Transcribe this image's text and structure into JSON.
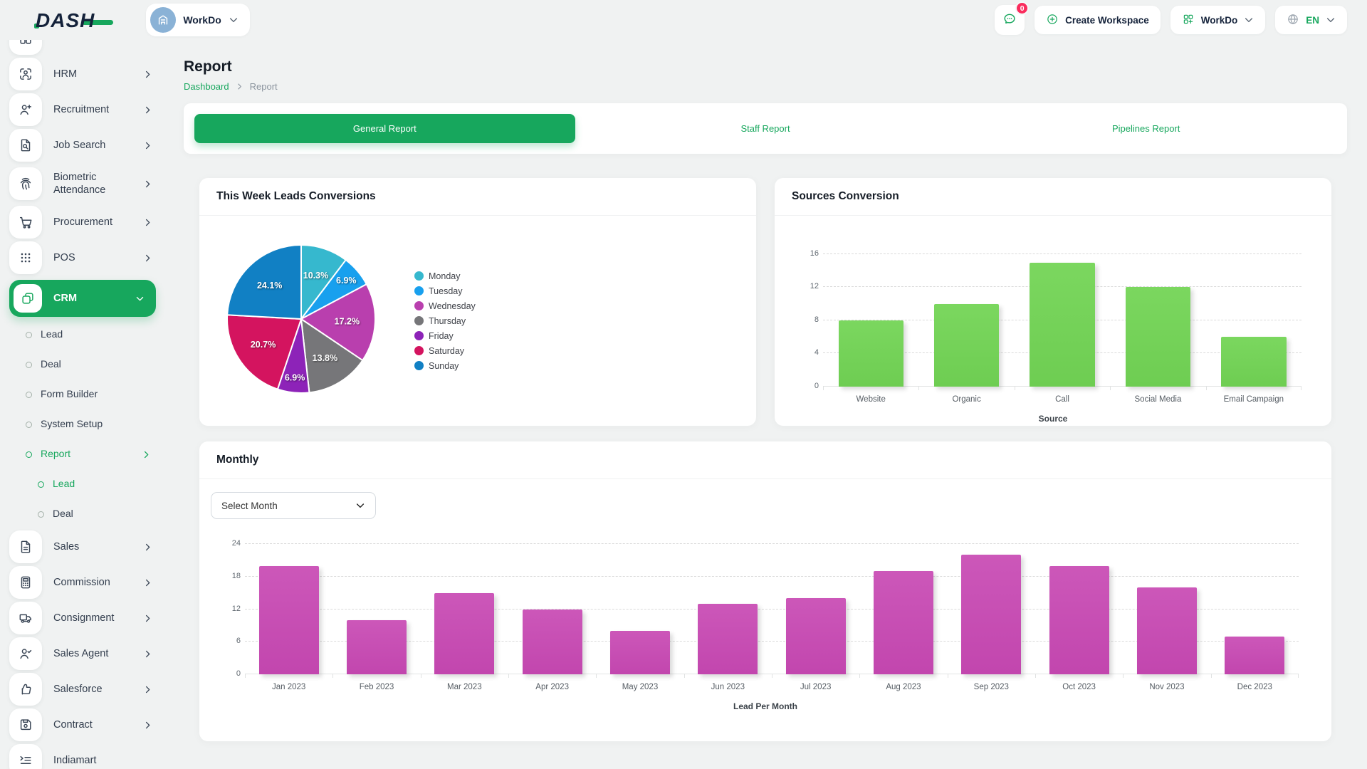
{
  "brand": {
    "logo_text": "DASH"
  },
  "header": {
    "workspace_switcher": {
      "label": "WorkDo",
      "avatar_icon": "building-icon"
    },
    "messages": {
      "icon": "chat-bubble-icon",
      "badge_count": "0"
    },
    "create_workspace": {
      "label": "Create Workspace",
      "icon": "plus-circle-icon"
    },
    "app_switcher": {
      "label": "WorkDo",
      "icon": "apps-grid-icon"
    },
    "language": {
      "label": "EN",
      "icon": "globe-icon"
    }
  },
  "page": {
    "title": "Report",
    "breadcrumb": [
      "Dashboard",
      "Report"
    ]
  },
  "tabs": [
    {
      "label": "General Report",
      "active": true
    },
    {
      "label": "Staff Report",
      "active": false
    },
    {
      "label": "Pipelines Report",
      "active": false
    }
  ],
  "sidebar": {
    "items": [
      {
        "label": "HRM",
        "icon": "hrm-icon",
        "level": 1,
        "has_children": true
      },
      {
        "label": "Recruitment",
        "icon": "recruitment-icon",
        "level": 1,
        "has_children": true
      },
      {
        "label": "Job Search",
        "icon": "job-search-icon",
        "level": 1,
        "has_children": true
      },
      {
        "label": "Biometric Attendance",
        "icon": "fingerprint-icon",
        "level": 1,
        "has_children": true,
        "tall": true
      },
      {
        "label": "Procurement",
        "icon": "cart-icon",
        "level": 1,
        "has_children": true
      },
      {
        "label": "POS",
        "icon": "grid-dots-icon",
        "level": 1,
        "has_children": true
      },
      {
        "label": "CRM",
        "icon": "crm-icon",
        "level": 1,
        "has_children": true,
        "active": true,
        "expanded": true
      },
      {
        "label": "Lead",
        "level": 2
      },
      {
        "label": "Deal",
        "level": 2
      },
      {
        "label": "Form Builder",
        "level": 2
      },
      {
        "label": "System Setup",
        "level": 2
      },
      {
        "label": "Report",
        "level": 2,
        "selected": true,
        "has_children": true
      },
      {
        "label": "Lead",
        "level": 3,
        "selected": true
      },
      {
        "label": "Deal",
        "level": 3
      },
      {
        "label": "Sales",
        "icon": "sales-doc-icon",
        "level": 1,
        "has_children": true
      },
      {
        "label": "Commission",
        "icon": "calculator-icon",
        "level": 1,
        "has_children": true
      },
      {
        "label": "Consignment",
        "icon": "truck-icon",
        "level": 1,
        "has_children": true
      },
      {
        "label": "Sales Agent",
        "icon": "user-check-icon",
        "level": 1,
        "has_children": true
      },
      {
        "label": "Salesforce",
        "icon": "thumbs-up-icon",
        "level": 1,
        "has_children": true
      },
      {
        "label": "Contract",
        "icon": "floppy-icon",
        "level": 1,
        "has_children": true
      },
      {
        "label": "Indiamart",
        "icon": "list-arrow-icon",
        "level": 1,
        "has_children": false
      }
    ]
  },
  "cards": {
    "weekly": {
      "title": "This Week Leads Conversions"
    },
    "sources": {
      "title": "Sources Conversion"
    },
    "monthly": {
      "title": "Monthly",
      "month_select": {
        "value": "Select Month"
      }
    }
  },
  "chart_data": [
    {
      "id": "weekly-leads-pie",
      "type": "pie",
      "title": "This Week Leads Conversions",
      "labels": [
        "Monday",
        "Tuesday",
        "Wednesday",
        "Thursday",
        "Friday",
        "Saturday",
        "Sunday"
      ],
      "values_pct": [
        10.3,
        6.9,
        17.2,
        13.8,
        6.9,
        20.7,
        24.1
      ],
      "colors": [
        "#36b8ce",
        "#18a0ee",
        "#b93fae",
        "#767679",
        "#8d23b8",
        "#d4145f",
        "#1180c4"
      ],
      "legend_position": "right"
    },
    {
      "id": "sources-conversion-bar",
      "type": "bar",
      "title": "Sources Conversion",
      "categories": [
        "Website",
        "Organic",
        "Call",
        "Social Media",
        "Email Campaign"
      ],
      "values": [
        8,
        10,
        15,
        12,
        6
      ],
      "xlabel": "Source",
      "yticks": [
        0,
        4,
        8,
        12,
        16
      ],
      "ylim": [
        0,
        17.2
      ],
      "grid": "dashed",
      "bar_gradient": [
        "#7bd75f",
        "#6ecd52"
      ]
    },
    {
      "id": "monthly-leads-bar",
      "type": "bar",
      "title": "Monthly",
      "categories": [
        "Jan 2023",
        "Feb 2023",
        "Mar 2023",
        "Apr 2023",
        "May 2023",
        "Jun 2023",
        "Jul 2023",
        "Aug 2023",
        "Sep 2023",
        "Oct 2023",
        "Nov 2023",
        "Dec 2023"
      ],
      "values": [
        20,
        10,
        15,
        12,
        8,
        13,
        14,
        19,
        22,
        20,
        16,
        7
      ],
      "xlabel": "Lead Per Month",
      "yticks": [
        0,
        6,
        12,
        18,
        24
      ],
      "ylim": [
        0,
        25.2
      ],
      "grid": "dashed",
      "bar_gradient": [
        "#cc57b9",
        "#c246ae"
      ]
    }
  ],
  "colors": {
    "accent": "#17a75d",
    "badge": "#fa2c5d",
    "sidebar_icon": "#3a4656"
  }
}
